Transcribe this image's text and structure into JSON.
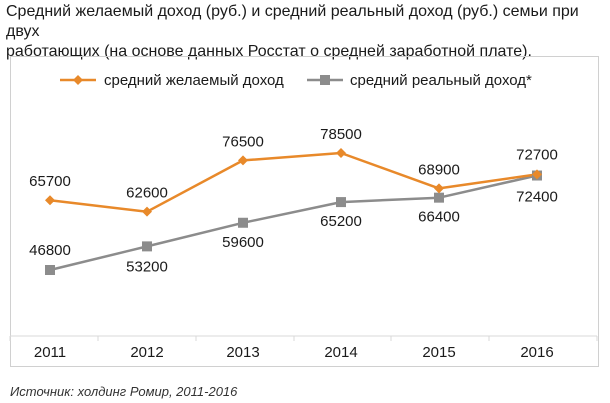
{
  "header": {
    "title_line1": "Средний желаемый доход (руб.) и средний реальный доход (руб.) семьи при двух",
    "title_line2": "работающих (на основе данных Росстат о средней заработной плате)."
  },
  "footer": {
    "source": "Источник: холдинг Ромир, 2011-2016"
  },
  "chart_data": {
    "type": "line",
    "title": "Средний желаемый доход (руб.) и средний реальный доход (руб.) семьи при двух работающих (на основе данных Росстат о средней заработной плате).",
    "categories": [
      "2011",
      "2012",
      "2013",
      "2014",
      "2015",
      "2016"
    ],
    "series": [
      {
        "name": "средний желаемый доход",
        "values": [
          65700,
          62600,
          76500,
          78500,
          68900,
          72700
        ],
        "labels": [
          "65700",
          "62600",
          "76500",
          "78500",
          "68900",
          "72700"
        ],
        "color": "#e8892a",
        "marker": "diamond"
      },
      {
        "name": "средний реальный доход*",
        "values": [
          46800,
          53200,
          59600,
          65200,
          66400,
          72400
        ],
        "labels": [
          "46800",
          "53200",
          "59600",
          "65200",
          "66400",
          "72400"
        ],
        "color": "#8c8c8c",
        "marker": "square"
      }
    ],
    "legend_position": "top",
    "grid": false,
    "axis_color": "#d9d9d9"
  }
}
